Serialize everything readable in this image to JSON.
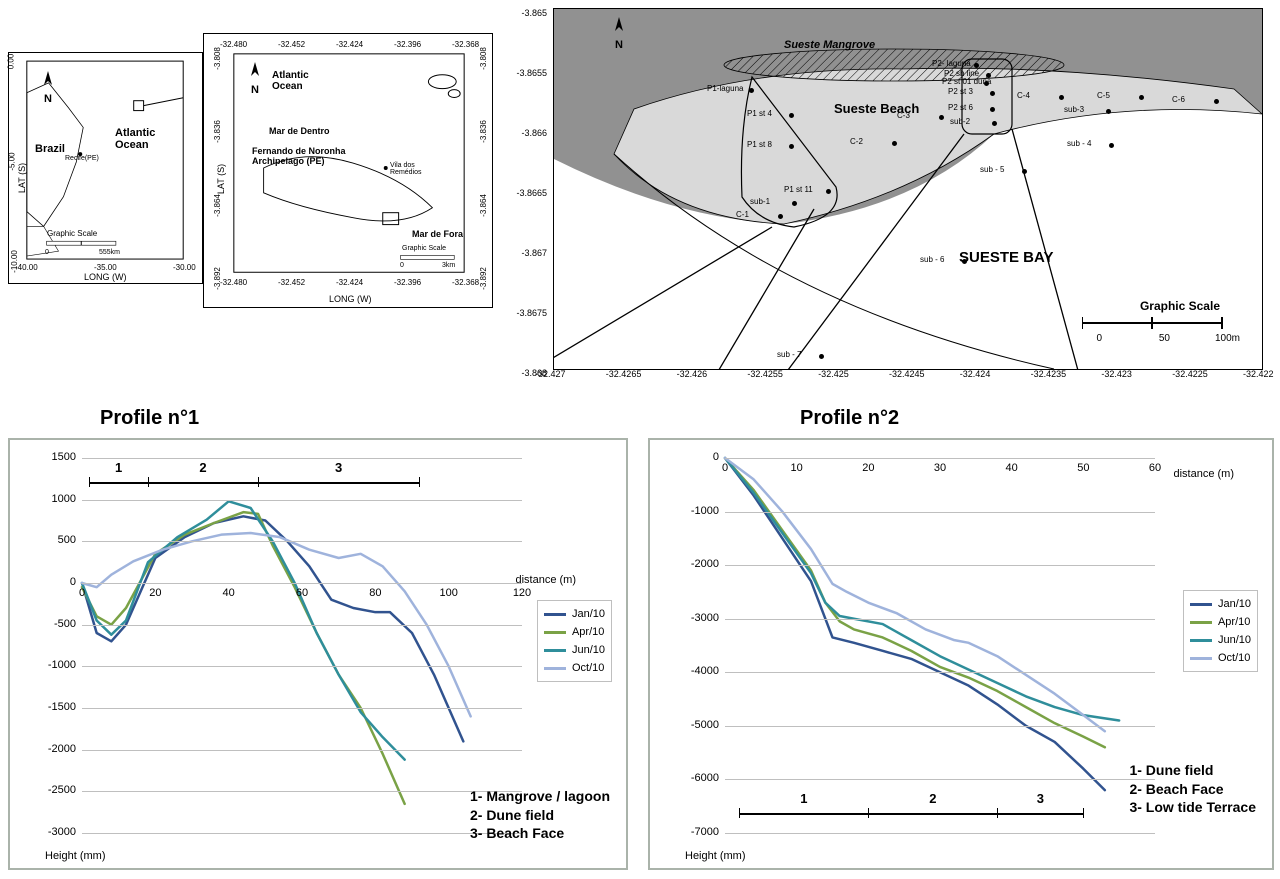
{
  "colors": {
    "series": {
      "jan10": "#31538f",
      "apr10": "#7aa246",
      "jun10": "#2f8e9b",
      "oct10": "#9fb3dc"
    },
    "grid": "#bfbfbf",
    "panel_border": "#aab3aa",
    "map_land_dark": "#919191",
    "beach_fill": "#d9d9d9",
    "water_fill": "#ffffff",
    "mangrove_stroke": "#000000"
  },
  "maps": {
    "brazil": {
      "labels": {
        "country": "Brazil",
        "ocean": "Atlantic Ocean",
        "city": "Recife(PE)"
      },
      "axes": {
        "x_title": "LONG (W)",
        "y_title": "LAT (S)",
        "x_ticks": [
          "-40.00",
          "-35.00",
          "-30.00"
        ],
        "y_ticks": [
          "0.00",
          "-5.00",
          "-10.00"
        ]
      },
      "scale": {
        "label": "Graphic Scale",
        "ticks": [
          "0",
          "555km"
        ]
      }
    },
    "noronha": {
      "labels": {
        "ocean": "Atlantic Ocean",
        "sea_inside": "Mar de Dentro",
        "sea_outside": "Mar de Fora",
        "archipelago": "Fernando de Noronha Archipelago (PE)",
        "village": "Vila dos Remédios"
      },
      "axes": {
        "x_title": "LONG (W)",
        "y_title": "LAT (S)",
        "x_ticks": [
          "-32.480",
          "-32.452",
          "-32.424",
          "-32.396",
          "-32.368"
        ],
        "y_ticks": [
          "-3.808",
          "-3.836",
          "-3.864",
          "-3.892"
        ]
      },
      "scale": {
        "label": "Graphic Scale",
        "ticks": [
          "0",
          "3km"
        ]
      }
    },
    "sueste": {
      "labels": {
        "mangrove": "Sueste Mangrove",
        "beach": "Sueste Beach",
        "bay": "SUESTE BAY"
      },
      "axes": {
        "x_ticks": [
          "-32.427",
          "-32.4265",
          "-32.426",
          "-32.4255",
          "-32.425",
          "-32.4245",
          "-32.424",
          "-32.4235",
          "-32.423",
          "-32.4225",
          "-32.422"
        ],
        "y_ticks": [
          "-3.865",
          "-3.8655",
          "-3.866",
          "-3.8665",
          "-3.867",
          "-3.8675",
          "-3.868"
        ]
      },
      "scale": {
        "label": "Graphic Scale",
        "ticks": [
          "0",
          "50",
          "100m"
        ]
      },
      "stations": [
        {
          "id": "P1-laguna",
          "px": [
            195,
            79
          ]
        },
        {
          "id": "P1 st 4",
          "px": [
            235,
            104
          ]
        },
        {
          "id": "P1 st 8",
          "px": [
            235,
            135
          ]
        },
        {
          "id": "P1 st 11",
          "px": [
            272,
            180
          ]
        },
        {
          "id": "sub-1",
          "px": [
            238,
            192
          ]
        },
        {
          "id": "C-1",
          "px": [
            224,
            205
          ]
        },
        {
          "id": "C-2",
          "px": [
            338,
            132
          ]
        },
        {
          "id": "C-3",
          "px": [
            385,
            106
          ]
        },
        {
          "id": "P2- laguna",
          "px": [
            420,
            54
          ]
        },
        {
          "id": "P2 sh line",
          "px": [
            432,
            64
          ]
        },
        {
          "id": "P2 st 01 duna",
          "px": [
            430,
            72
          ]
        },
        {
          "id": "P2 st 3",
          "px": [
            436,
            82
          ]
        },
        {
          "id": "P2 st 6",
          "px": [
            436,
            98
          ]
        },
        {
          "id": "sub-2",
          "px": [
            438,
            112
          ]
        },
        {
          "id": "C-4",
          "px": [
            505,
            86
          ]
        },
        {
          "id": "sub-3",
          "px": [
            552,
            100
          ]
        },
        {
          "id": "C-5",
          "px": [
            585,
            86
          ]
        },
        {
          "id": "sub - 4",
          "px": [
            555,
            134
          ]
        },
        {
          "id": "C-6",
          "px": [
            660,
            90
          ]
        },
        {
          "id": "sub - 5",
          "px": [
            468,
            160
          ]
        },
        {
          "id": "sub - 6",
          "px": [
            408,
            250
          ]
        },
        {
          "id": "sub - 7",
          "px": [
            265,
            345
          ]
        }
      ]
    }
  },
  "profile_titles": {
    "p1": "Profile n°1",
    "p2": "Profile n°2"
  },
  "legend": {
    "items": [
      {
        "key": "jan10",
        "label": "Jan/10"
      },
      {
        "key": "apr10",
        "label": "Apr/10"
      },
      {
        "key": "jun10",
        "label": "Jun/10"
      },
      {
        "key": "oct10",
        "label": "Oct/10"
      }
    ]
  },
  "profile1": {
    "xlabel": "distance (m)",
    "ylabel": "Height (mm)",
    "xlim": [
      0,
      120
    ],
    "ylim": [
      -3000,
      1500
    ],
    "xticks": [
      0,
      20,
      40,
      60,
      80,
      100,
      120
    ],
    "yticks": [
      1500,
      1000,
      500,
      0,
      -500,
      -1000,
      -1500,
      -2000,
      -2500,
      -3000
    ],
    "zones": {
      "breaks": [
        2,
        18,
        48,
        92
      ],
      "labels": [
        "1",
        "2",
        "3"
      ]
    },
    "key": [
      "1- Mangrove / lagoon",
      "2- Dune field",
      "3- Beach Face"
    ],
    "series": {
      "jan10": [
        [
          0,
          0
        ],
        [
          4,
          -600
        ],
        [
          8,
          -700
        ],
        [
          12,
          -500
        ],
        [
          20,
          300
        ],
        [
          28,
          550
        ],
        [
          36,
          720
        ],
        [
          44,
          800
        ],
        [
          50,
          750
        ],
        [
          56,
          500
        ],
        [
          62,
          200
        ],
        [
          68,
          -200
        ],
        [
          74,
          -300
        ],
        [
          80,
          -350
        ],
        [
          84,
          -350
        ],
        [
          90,
          -600
        ],
        [
          96,
          -1100
        ],
        [
          104,
          -1900
        ]
      ],
      "apr10": [
        [
          0,
          -50
        ],
        [
          4,
          -400
        ],
        [
          8,
          -500
        ],
        [
          12,
          -300
        ],
        [
          20,
          350
        ],
        [
          28,
          580
        ],
        [
          36,
          720
        ],
        [
          44,
          850
        ],
        [
          48,
          830
        ],
        [
          52,
          450
        ],
        [
          58,
          -50
        ],
        [
          64,
          -600
        ],
        [
          70,
          -1100
        ],
        [
          76,
          -1500
        ],
        [
          82,
          -2050
        ],
        [
          88,
          -2650
        ]
      ],
      "jun10": [
        [
          0,
          0
        ],
        [
          4,
          -450
        ],
        [
          8,
          -620
        ],
        [
          12,
          -450
        ],
        [
          18,
          250
        ],
        [
          26,
          550
        ],
        [
          34,
          760
        ],
        [
          40,
          980
        ],
        [
          46,
          900
        ],
        [
          52,
          500
        ],
        [
          58,
          0
        ],
        [
          64,
          -600
        ],
        [
          70,
          -1100
        ],
        [
          76,
          -1550
        ],
        [
          82,
          -1850
        ],
        [
          88,
          -2120
        ]
      ],
      "oct10": [
        [
          0,
          0
        ],
        [
          4,
          -50
        ],
        [
          8,
          100
        ],
        [
          14,
          260
        ],
        [
          22,
          400
        ],
        [
          30,
          500
        ],
        [
          38,
          580
        ],
        [
          46,
          600
        ],
        [
          54,
          550
        ],
        [
          62,
          400
        ],
        [
          70,
          300
        ],
        [
          76,
          350
        ],
        [
          82,
          200
        ],
        [
          88,
          -100
        ],
        [
          94,
          -500
        ],
        [
          100,
          -1000
        ],
        [
          106,
          -1600
        ]
      ]
    }
  },
  "profile2": {
    "xlabel": "distance (m)",
    "ylabel": "Height (mm)",
    "xlim": [
      0,
      60
    ],
    "ylim": [
      -7000,
      0
    ],
    "xticks": [
      0,
      10,
      20,
      30,
      40,
      50,
      60
    ],
    "yticks": [
      0,
      -1000,
      -2000,
      -3000,
      -4000,
      -5000,
      -6000,
      -7000
    ],
    "zones": {
      "breaks": [
        2,
        20,
        38,
        50
      ],
      "labels": [
        "1",
        "2",
        "3"
      ]
    },
    "key": [
      "1- Dune field",
      "2- Beach Face",
      "3- Low tide Terrace"
    ],
    "series": {
      "jan10": [
        [
          0,
          0
        ],
        [
          4,
          -700
        ],
        [
          8,
          -1500
        ],
        [
          12,
          -2300
        ],
        [
          14,
          -3000
        ],
        [
          15,
          -3350
        ],
        [
          18,
          -3450
        ],
        [
          22,
          -3600
        ],
        [
          26,
          -3750
        ],
        [
          30,
          -4000
        ],
        [
          34,
          -4250
        ],
        [
          38,
          -4600
        ],
        [
          42,
          -5000
        ],
        [
          46,
          -5300
        ],
        [
          50,
          -5800
        ],
        [
          53,
          -6200
        ]
      ],
      "apr10": [
        [
          0,
          0
        ],
        [
          4,
          -600
        ],
        [
          8,
          -1350
        ],
        [
          12,
          -2100
        ],
        [
          14,
          -2700
        ],
        [
          16,
          -3050
        ],
        [
          18,
          -3200
        ],
        [
          22,
          -3350
        ],
        [
          26,
          -3600
        ],
        [
          30,
          -3900
        ],
        [
          34,
          -4100
        ],
        [
          38,
          -4350
        ],
        [
          42,
          -4650
        ],
        [
          46,
          -4950
        ],
        [
          50,
          -5200
        ],
        [
          53,
          -5400
        ]
      ],
      "jun10": [
        [
          0,
          0
        ],
        [
          4,
          -650
        ],
        [
          8,
          -1400
        ],
        [
          12,
          -2150
        ],
        [
          14,
          -2700
        ],
        [
          16,
          -2950
        ],
        [
          18,
          -3000
        ],
        [
          22,
          -3100
        ],
        [
          26,
          -3400
        ],
        [
          30,
          -3700
        ],
        [
          34,
          -3950
        ],
        [
          38,
          -4200
        ],
        [
          42,
          -4450
        ],
        [
          46,
          -4650
        ],
        [
          50,
          -4800
        ],
        [
          55,
          -4900
        ]
      ],
      "oct10": [
        [
          0,
          0
        ],
        [
          4,
          -400
        ],
        [
          8,
          -1000
        ],
        [
          12,
          -1700
        ],
        [
          15,
          -2350
        ],
        [
          17,
          -2500
        ],
        [
          20,
          -2700
        ],
        [
          24,
          -2900
        ],
        [
          28,
          -3200
        ],
        [
          32,
          -3400
        ],
        [
          34,
          -3450
        ],
        [
          38,
          -3700
        ],
        [
          42,
          -4050
        ],
        [
          46,
          -4400
        ],
        [
          50,
          -4800
        ],
        [
          53,
          -5100
        ]
      ]
    }
  }
}
